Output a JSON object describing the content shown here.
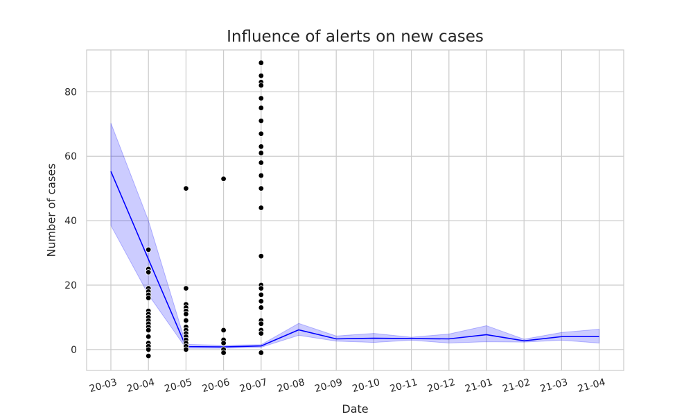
{
  "chart_data": {
    "type": "line",
    "title": "Influence of alerts on new cases",
    "xlabel": "Date",
    "ylabel": "Number of cases",
    "x_ticks": [
      "20-03",
      "20-04",
      "20-05",
      "20-06",
      "20-07",
      "20-08",
      "20-09",
      "20-10",
      "20-11",
      "20-12",
      "21-01",
      "21-02",
      "21-03",
      "21-04"
    ],
    "y_ticks": [
      0,
      20,
      40,
      60,
      80
    ],
    "ylim": [
      -6.5,
      93
    ],
    "grid": true,
    "colors": {
      "line": "#0000ff",
      "band": "#0000ff",
      "points": "#000000",
      "grid": "#cccccc"
    },
    "series": [
      {
        "mean": [
          55.3,
          28.0,
          0.9,
          0.8,
          1.1,
          6.1,
          3.3,
          3.5,
          3.4,
          3.3,
          4.6,
          2.7,
          4.0,
          4.0
        ],
        "ci_low": [
          38.5,
          17.0,
          0.4,
          0.4,
          0.7,
          4.4,
          2.6,
          2.2,
          2.9,
          2.0,
          2.4,
          2.3,
          2.9,
          2.0
        ],
        "ci_high": [
          70.3,
          40.0,
          1.6,
          1.3,
          1.5,
          8.1,
          4.2,
          5.0,
          3.8,
          4.8,
          7.4,
          3.2,
          5.3,
          6.3
        ]
      }
    ],
    "scatter": [
      {
        "x": "20-04",
        "values": [
          31,
          25,
          24,
          19,
          18,
          17,
          16,
          12,
          11,
          10,
          9,
          8,
          7,
          6,
          4,
          2,
          1,
          0,
          -2
        ]
      },
      {
        "x": "20-05",
        "values": [
          50,
          19,
          14,
          13,
          12,
          11,
          9,
          7,
          6,
          5,
          4,
          3,
          2,
          1,
          0
        ]
      },
      {
        "x": "20-06",
        "values": [
          53,
          6,
          3,
          2,
          0,
          -1
        ]
      },
      {
        "x": "20-07",
        "values": [
          89,
          85,
          83,
          82,
          78,
          75,
          71,
          67,
          63,
          61,
          58,
          54,
          50,
          44,
          29,
          20,
          19,
          17,
          15,
          13,
          9,
          8,
          6,
          5,
          -1
        ]
      }
    ]
  }
}
